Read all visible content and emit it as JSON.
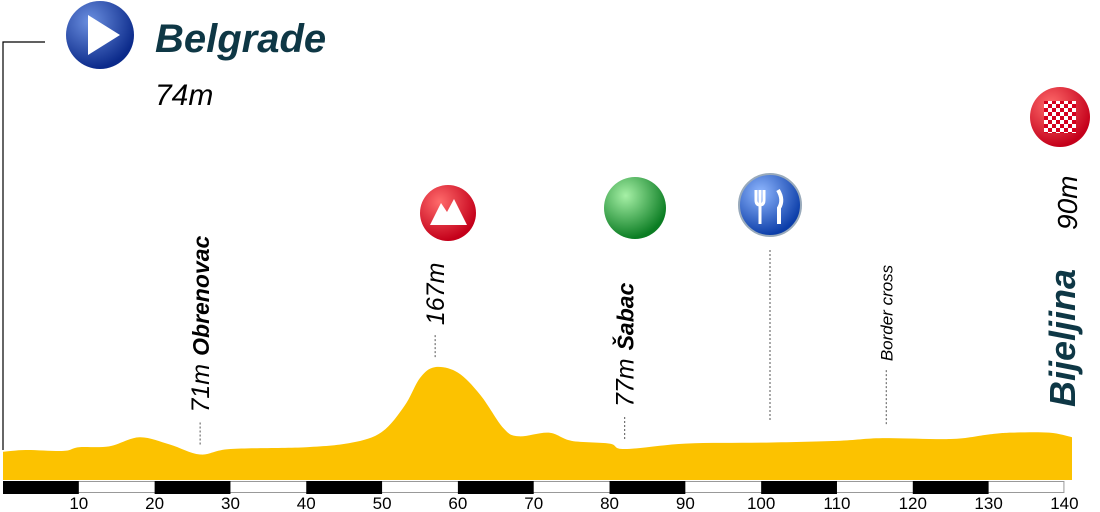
{
  "chart_data": {
    "type": "profile",
    "start": "Belgrade",
    "finish": "Bijeljina",
    "x": [
      0,
      3,
      8,
      10,
      14,
      18,
      22,
      26,
      30,
      40,
      46,
      50,
      53,
      55,
      57,
      60,
      63,
      66,
      68,
      72,
      75,
      80,
      82,
      90,
      100,
      110,
      116,
      125,
      130,
      133,
      138,
      141
    ],
    "values": [
      74,
      76,
      75,
      79,
      80,
      90,
      82,
      71,
      77,
      79,
      84,
      96,
      125,
      155,
      167,
      161,
      136,
      100,
      91,
      95,
      86,
      83,
      77,
      83,
      84,
      86,
      89,
      88,
      93,
      95,
      95,
      90
    ],
    "value_labels": [
      "74m",
      null,
      null,
      null,
      null,
      null,
      null,
      "71m",
      null,
      null,
      null,
      null,
      null,
      null,
      "167m",
      null,
      null,
      null,
      null,
      null,
      null,
      null,
      "77m",
      null,
      null,
      null,
      null,
      null,
      null,
      null,
      null,
      "90m"
    ],
    "annotations": [
      {
        "x": 26,
        "name": "Obrenovac"
      },
      {
        "x": 82,
        "name": "Šabac"
      },
      {
        "x": 116.5,
        "name": "Border cross"
      }
    ],
    "color": "#fcc200",
    "xlim": [
      0,
      141
    ],
    "xticks": [
      10,
      20,
      30,
      40,
      50,
      60,
      70,
      80,
      90,
      100,
      110,
      120,
      130,
      140
    ],
    "ylim": [
      43,
      210
    ]
  }
}
